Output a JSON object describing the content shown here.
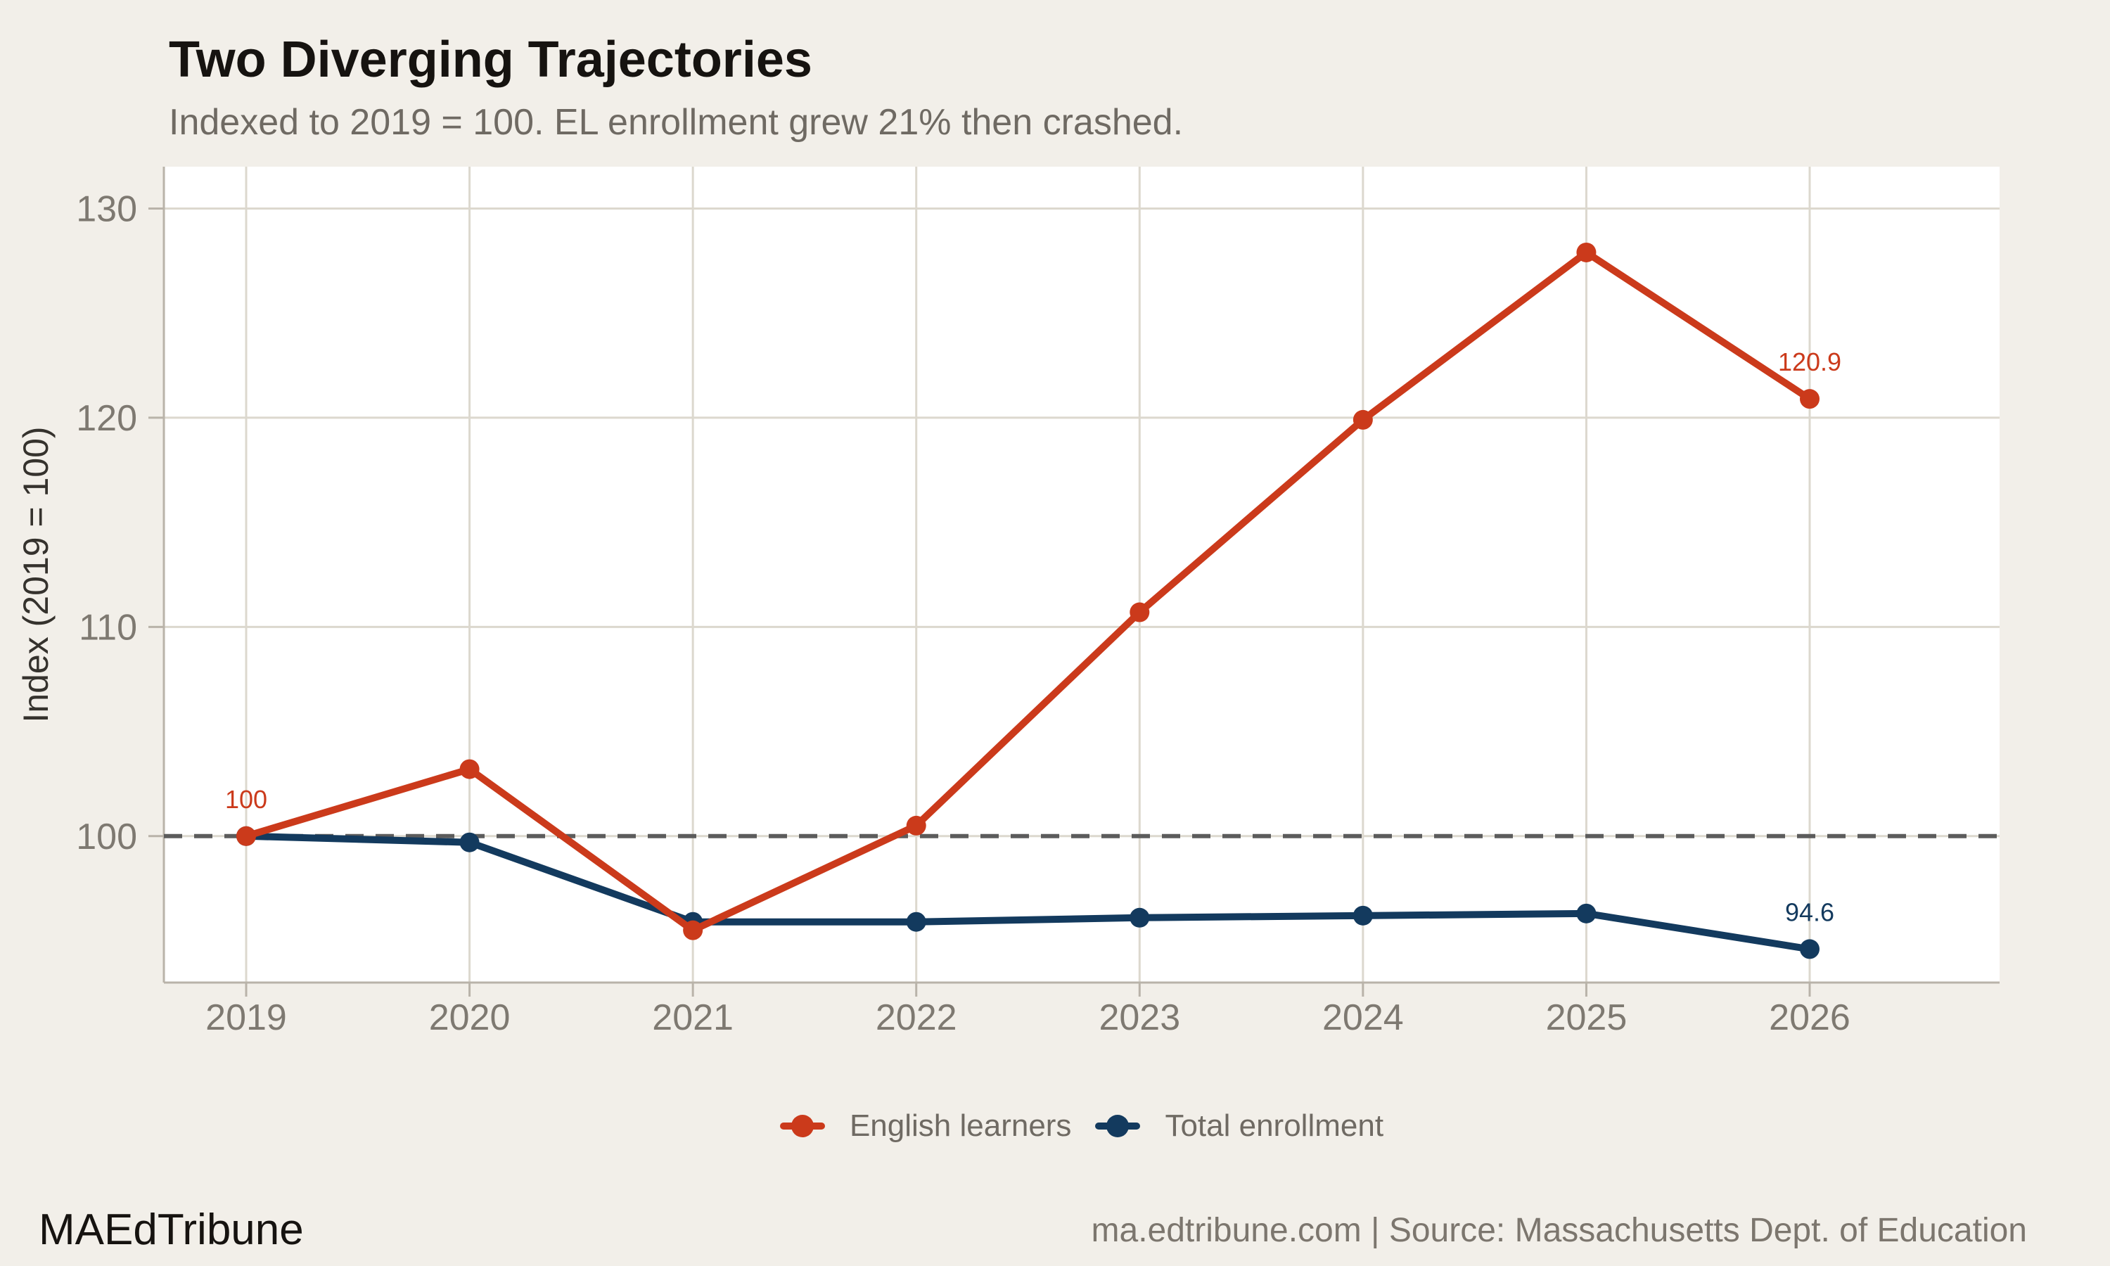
{
  "chart_data": {
    "type": "line",
    "title": "Two Diverging Trajectories",
    "subtitle": "Indexed to 2019 = 100. EL enrollment grew 21% then crashed.",
    "ylabel": "Index (2019 = 100)",
    "xlabel": "",
    "categories": [
      "2019",
      "2020",
      "2021",
      "2022",
      "2023",
      "2024",
      "2025",
      "2026"
    ],
    "series": [
      {
        "name": "English learners",
        "color": "#cb3a1b",
        "values": [
          100,
          103.2,
          95.5,
          100.5,
          110.7,
          119.9,
          127.9,
          120.9
        ]
      },
      {
        "name": "Total enrollment",
        "color": "#133a5e",
        "values": [
          100,
          99.7,
          95.9,
          95.9,
          96.1,
          96.2,
          96.3,
          94.6
        ]
      }
    ],
    "annotations": [
      {
        "series": 0,
        "index": 0,
        "text": "100"
      },
      {
        "series": 0,
        "index": 7,
        "text": "120.9"
      },
      {
        "series": 1,
        "index": 7,
        "text": "94.6"
      }
    ],
    "yticks": [
      100,
      110,
      120,
      130
    ],
    "ylim": [
      93,
      132
    ],
    "reference_line": {
      "value": 100,
      "style": "dashed",
      "color": "#5c5c5c"
    },
    "grid": true,
    "legend_position": "bottom-center",
    "colors": {
      "background": "#f2efe9",
      "plot_background": "#ffffff",
      "gridline": "#dcd8ce",
      "axis_line": "#b9b3a9",
      "tick_label": "#7e7971",
      "axis_title": "#35322d"
    }
  },
  "footer": {
    "brand": "MAEdTribune",
    "source": "ma.edtribune.com | Source: Massachusetts Dept. of Education"
  }
}
